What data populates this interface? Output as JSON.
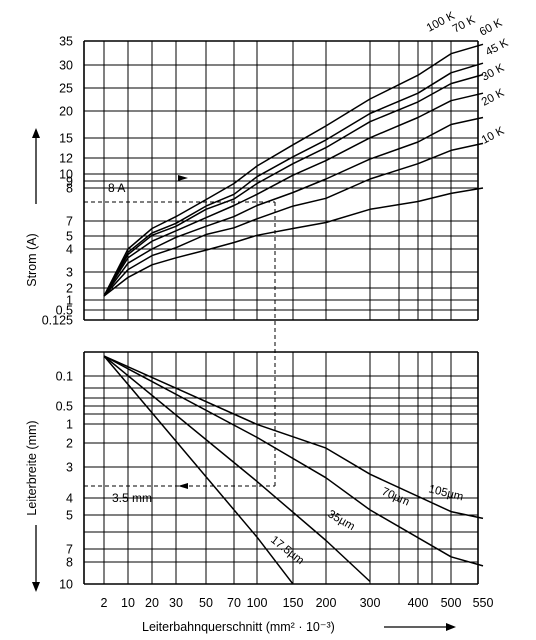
{
  "chart_data": [
    {
      "type": "line",
      "panel": "top",
      "ylabel": "Strom (A)",
      "xlabel": "",
      "y_ticks": [
        "35",
        "30",
        "25",
        "20",
        "15",
        "12",
        "10",
        "9",
        "8",
        "7",
        "5",
        "4",
        "3",
        "2",
        "1",
        "0.5",
        "0.125"
      ],
      "x": [
        2,
        10,
        20,
        30,
        50,
        70,
        100,
        150,
        200,
        300,
        400,
        500,
        550
      ],
      "series": [
        {
          "name": "10 K",
          "values": [
            0.5,
            1.9,
            2.7,
            3.2,
            3.9,
            4.5,
            5.1,
            6.0,
            6.8,
            8.1,
            9.3,
            10.4,
            11.0
          ]
        },
        {
          "name": "20 K",
          "values": [
            0.5,
            2.4,
            3.4,
            4.1,
            5.2,
            6.1,
            7.2,
            8.6,
            9.8,
            12.0,
            14.0,
            15.8,
            16.8
          ]
        },
        {
          "name": "30 K",
          "values": [
            0.5,
            2.8,
            4.0,
            4.9,
            6.3,
            7.4,
            8.7,
            10.5,
            12.0,
            14.6,
            17.0,
            19.5,
            20.6
          ]
        },
        {
          "name": "45 K",
          "values": [
            0.5,
            3.2,
            4.6,
            5.7,
            7.3,
            8.7,
            10.3,
            12.5,
            14.4,
            17.6,
            20.6,
            23.5,
            24.8
          ]
        },
        {
          "name": "60 K",
          "values": [
            0.5,
            3.5,
            5.1,
            6.3,
            8.1,
            9.7,
            11.5,
            14.0,
            16.2,
            19.9,
            23.3,
            26.4,
            27.9
          ]
        },
        {
          "name": "70 K",
          "values": [
            0.5,
            3.7,
            5.4,
            6.7,
            8.6,
            10.3,
            12.3,
            14.9,
            17.3,
            21.3,
            24.8,
            28.2,
            29.8
          ]
        },
        {
          "name": "100 K",
          "values": [
            0.5,
            4.0,
            6.0,
            7.4,
            9.6,
            11.5,
            13.7,
            16.6,
            19.3,
            23.8,
            27.8,
            31.6,
            33.4
          ]
        }
      ],
      "annotation": {
        "label": "8 A",
        "current": 8,
        "cross_section": 125
      }
    },
    {
      "type": "line",
      "panel": "bottom",
      "ylabel": "Leiterbreite (mm)",
      "xlabel": "Leiterbahnquerschnitt (mm² · 10⁻³)",
      "x_ticks": [
        "2",
        "10",
        "20",
        "30",
        "50",
        "70",
        "100",
        "150",
        "200",
        "300",
        "400",
        "500",
        "550"
      ],
      "y_ticks": [
        "0.1",
        "0.5",
        "1",
        "2",
        "3",
        "4",
        "5",
        "7",
        "8",
        "10"
      ],
      "series": [
        {
          "name": "17.5µm",
          "x": [
            2,
            100,
            150
          ],
          "values": [
            0.1,
            6.3,
            9.7
          ]
        },
        {
          "name": "35µm",
          "x": [
            2,
            100,
            200,
            300
          ],
          "values": [
            0.1,
            3.4,
            6.5,
            9.5
          ]
        },
        {
          "name": "70µm",
          "x": [
            2,
            100,
            200,
            300,
            500,
            550
          ],
          "values": [
            0.1,
            1.9,
            3.3,
            4.7,
            7.6,
            8.3
          ]
        },
        {
          "name": "105µm",
          "x": [
            2,
            100,
            200,
            300,
            500,
            550
          ],
          "values": [
            0.1,
            1.4,
            2.3,
            3.2,
            4.8,
            5.2
          ]
        }
      ],
      "annotation": {
        "label": "3.5 mm",
        "width": 3.5,
        "cross_section": 125
      }
    }
  ]
}
